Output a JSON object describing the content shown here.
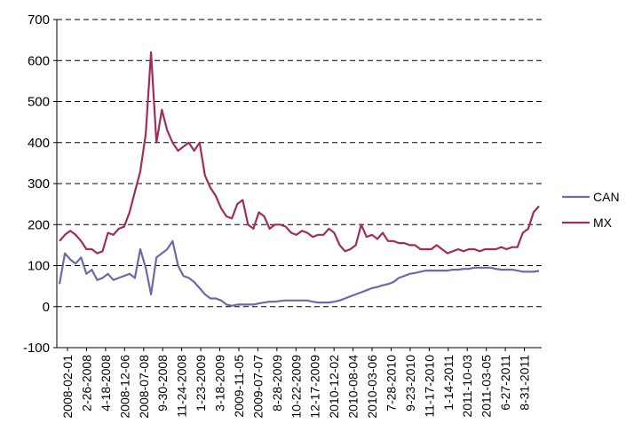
{
  "chart_data": {
    "type": "line",
    "title": "",
    "xlabel": "",
    "ylabel": "",
    "ylim": [
      -100,
      700
    ],
    "yticks": [
      -100,
      0,
      100,
      200,
      300,
      400,
      500,
      600,
      700
    ],
    "grid": "horizontal dashed",
    "legend": "right",
    "x_tick_labels": [
      "2008-02-01",
      "2-26-2008",
      "4-18-2008",
      "2008-12-06",
      "2008-07-08",
      "9-30-2008",
      "11-24-2008",
      "1-23-2009",
      "3-18-2009",
      "2009-11-05",
      "2009-07-07",
      "8-28-2009",
      "10-22-2009",
      "12-17-2009",
      "2010-12-02",
      "2010-08-04",
      "2010-03-06",
      "7-28-2010",
      "9-23-2010",
      "11-17-2010",
      "1-14-2011",
      "2011-10-03",
      "2011-03-05",
      "6-27-2011",
      "8-31-2011"
    ],
    "x": [
      "2008-02-01",
      "2008-02-15",
      "2008-03-01",
      "2008-03-15",
      "2008-04-01",
      "2008-04-15",
      "2008-05-01",
      "2008-05-15",
      "2008-06-01",
      "2008-06-15",
      "2008-07-01",
      "2008-07-15",
      "2008-08-01",
      "2008-08-15",
      "2008-09-01",
      "2008-09-15",
      "2008-10-01",
      "2008-10-10",
      "2008-10-20",
      "2008-11-01",
      "2008-11-15",
      "2008-12-01",
      "2008-12-15",
      "2009-01-01",
      "2009-01-15",
      "2009-02-01",
      "2009-02-15",
      "2009-03-01",
      "2009-03-15",
      "2009-04-01",
      "2009-04-15",
      "2009-05-01",
      "2009-05-15",
      "2009-06-01",
      "2009-06-15",
      "2009-07-01",
      "2009-07-15",
      "2009-08-01",
      "2009-08-15",
      "2009-09-01",
      "2009-09-15",
      "2009-10-01",
      "2009-10-15",
      "2009-11-01",
      "2009-11-15",
      "2009-12-01",
      "2009-12-15",
      "2010-01-01",
      "2010-01-15",
      "2010-02-01",
      "2010-02-15",
      "2010-03-01",
      "2010-03-15",
      "2010-04-01",
      "2010-04-15",
      "2010-05-01",
      "2010-05-15",
      "2010-06-01",
      "2010-06-15",
      "2010-07-01",
      "2010-07-15",
      "2010-08-01",
      "2010-08-15",
      "2010-09-01",
      "2010-09-15",
      "2010-10-01",
      "2010-10-15",
      "2010-11-01",
      "2010-11-15",
      "2010-12-01",
      "2010-12-15",
      "2011-01-01",
      "2011-01-15",
      "2011-02-01",
      "2011-02-15",
      "2011-03-01",
      "2011-03-15",
      "2011-04-01",
      "2011-04-15",
      "2011-05-01",
      "2011-05-15",
      "2011-06-01",
      "2011-06-15",
      "2011-07-01",
      "2011-07-15",
      "2011-08-01",
      "2011-08-15",
      "2011-09-01",
      "2011-09-15",
      "2011-09-30"
    ],
    "series": [
      {
        "name": "CAN",
        "color": "#6a6aa8",
        "values": [
          55,
          130,
          115,
          105,
          120,
          80,
          90,
          65,
          70,
          80,
          65,
          70,
          75,
          80,
          70,
          140,
          95,
          30,
          120,
          130,
          140,
          160,
          100,
          75,
          70,
          60,
          45,
          30,
          20,
          20,
          15,
          5,
          2,
          5,
          5,
          5,
          5,
          8,
          10,
          12,
          12,
          14,
          15,
          15,
          15,
          15,
          15,
          12,
          10,
          10,
          10,
          12,
          15,
          20,
          25,
          30,
          35,
          40,
          45,
          48,
          52,
          55,
          60,
          70,
          75,
          80,
          82,
          85,
          88,
          88,
          88,
          88,
          88,
          90,
          90,
          92,
          92,
          95,
          95,
          95,
          95,
          92,
          90,
          90,
          90,
          88,
          85,
          85,
          85,
          87
        ]
      },
      {
        "name": "MX",
        "color": "#a02c5c",
        "values": [
          160,
          175,
          185,
          175,
          160,
          140,
          140,
          130,
          135,
          180,
          175,
          190,
          195,
          230,
          280,
          330,
          420,
          620,
          400,
          480,
          430,
          400,
          380,
          390,
          400,
          380,
          400,
          320,
          290,
          270,
          240,
          220,
          215,
          250,
          260,
          200,
          190,
          230,
          220,
          190,
          200,
          200,
          195,
          180,
          175,
          185,
          180,
          170,
          175,
          175,
          190,
          180,
          150,
          135,
          140,
          150,
          200,
          170,
          175,
          165,
          180,
          160,
          160,
          155,
          155,
          150,
          150,
          140,
          140,
          140,
          150,
          140,
          130,
          135,
          140,
          135,
          140,
          140,
          135,
          140,
          140,
          140,
          145,
          140,
          145,
          145,
          180,
          190,
          230,
          245
        ]
      }
    ]
  }
}
